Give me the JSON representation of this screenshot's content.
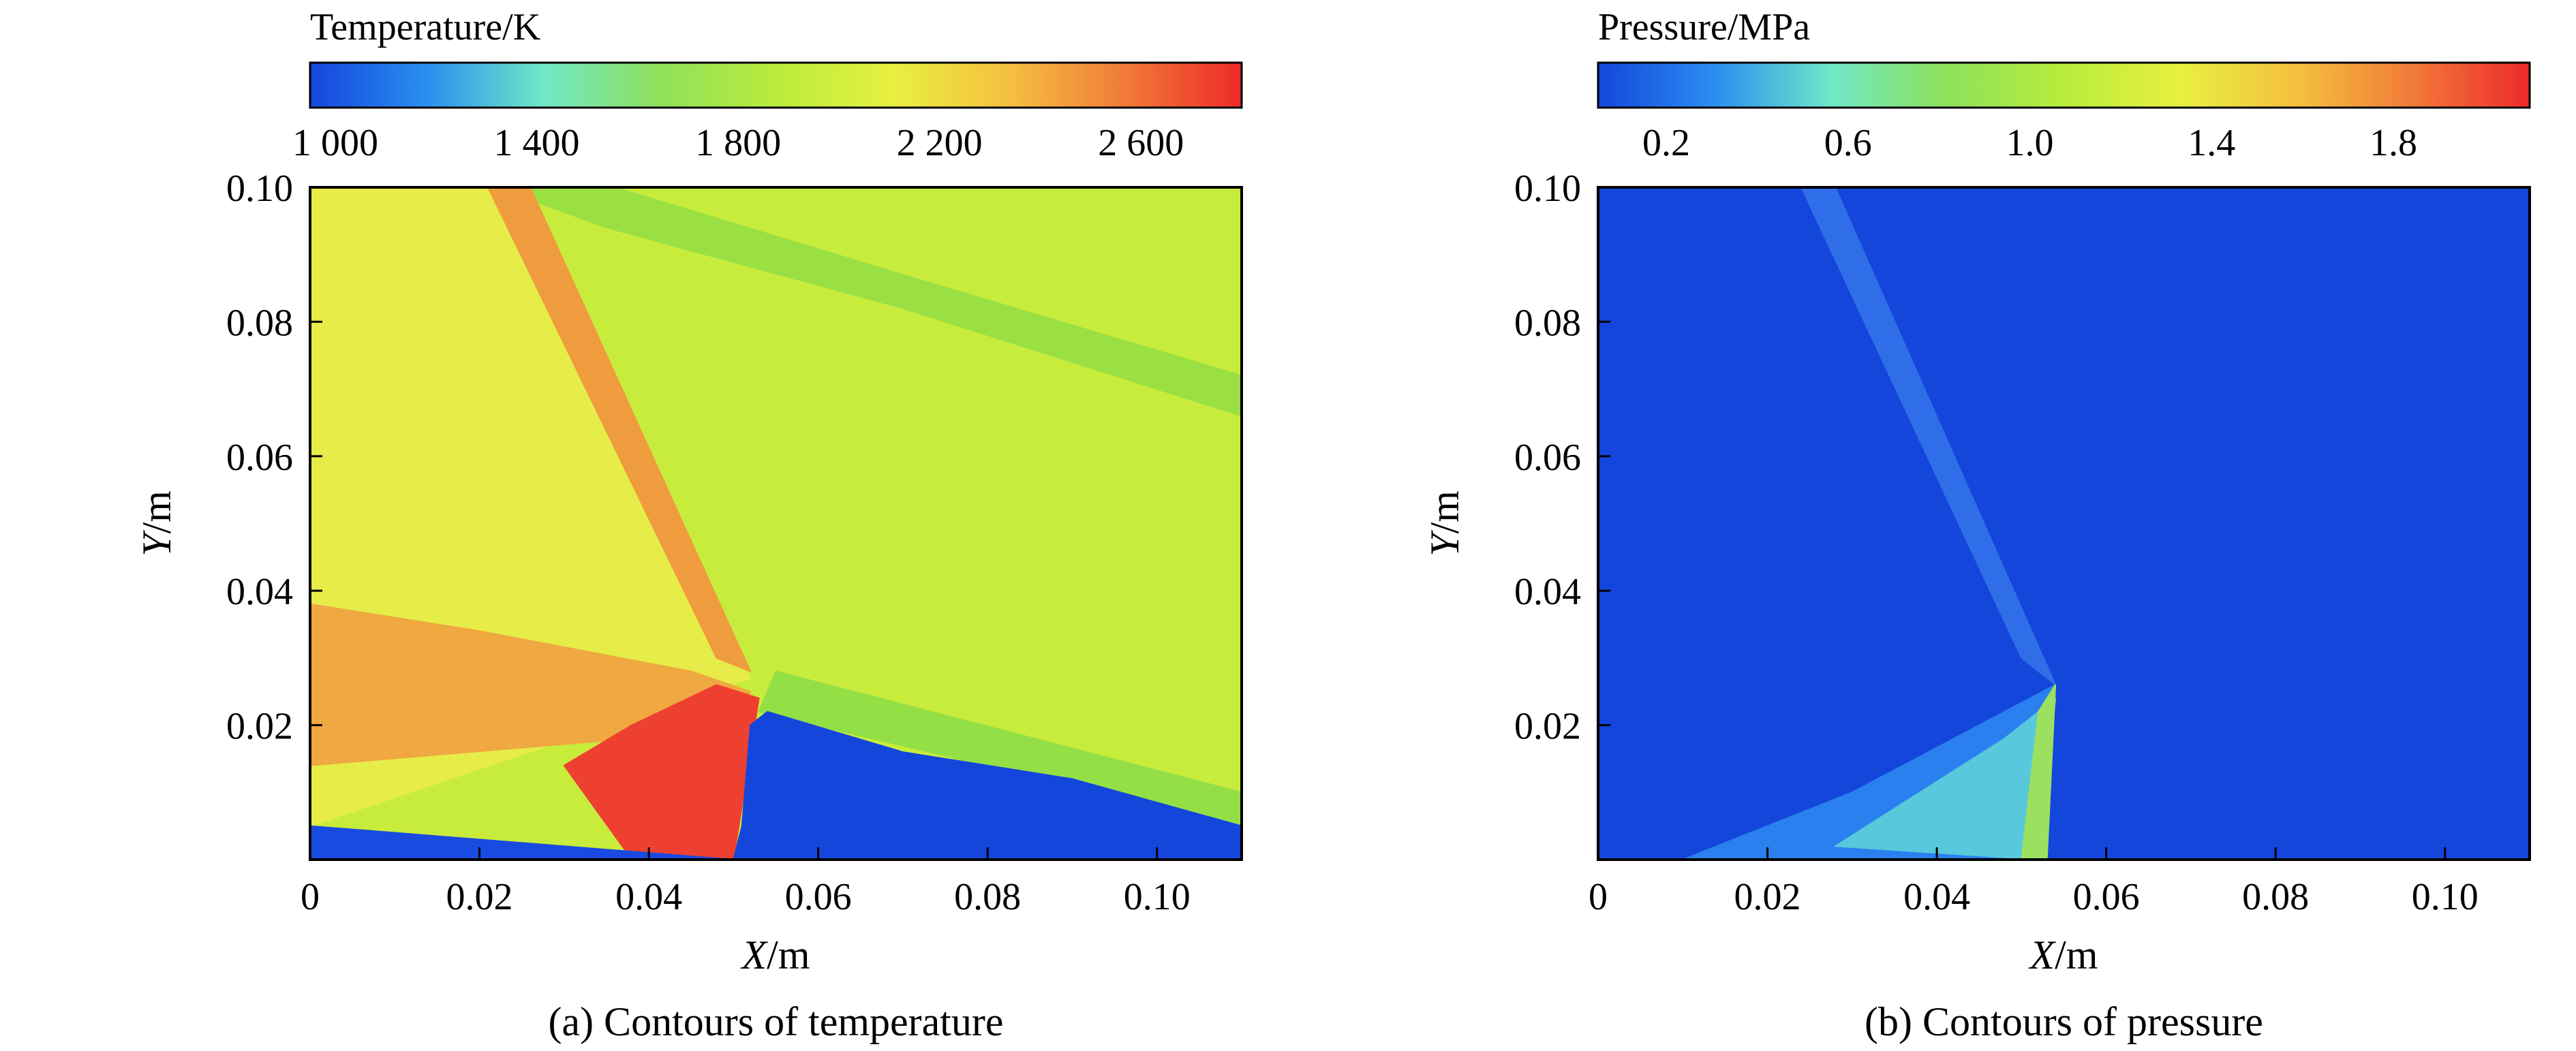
{
  "chart_data": [
    {
      "type": "heatmap",
      "panel": "a",
      "caption": "(a) Contours of temperature",
      "colorbar": {
        "title": "Temperature/K",
        "tick_labels": [
          "1 000",
          "1 400",
          "1 800",
          "2 200",
          "2 600"
        ],
        "tick_values": [
          1000,
          1400,
          1800,
          2200,
          2600
        ],
        "range": [
          950,
          2800
        ],
        "colors": [
          "#1446dc",
          "#2a8ef0",
          "#6fe8c8",
          "#8fe05a",
          "#b8ec3c",
          "#e8f040",
          "#f5c040",
          "#f07a38",
          "#ee2a2a"
        ]
      },
      "xlabel_var": "X",
      "xlabel_unit": "/m",
      "ylabel_var": "Y",
      "ylabel_unit": "/m",
      "x_ticks": [
        "0",
        "0.02",
        "0.04",
        "0.06",
        "0.08",
        "0.10"
      ],
      "x_tick_values": [
        0,
        0.02,
        0.04,
        0.06,
        0.08,
        0.1
      ],
      "y_ticks": [
        "0.02",
        "0.04",
        "0.06",
        "0.08",
        "0.10"
      ],
      "y_tick_values": [
        0.02,
        0.04,
        0.06,
        0.08,
        0.1
      ],
      "xlim": [
        0,
        0.11
      ],
      "ylim": [
        0,
        0.1
      ],
      "regions": [
        {
          "name": "background-post-shock",
          "color": "#c8ec3c",
          "polygon": [
            [
              0,
              0
            ],
            [
              0.11,
              0
            ],
            [
              0.11,
              0.1
            ],
            [
              0,
              0.1
            ]
          ]
        },
        {
          "name": "upper-band",
          "color": "#9ae043",
          "polygon": [
            [
              0.022,
              0.1
            ],
            [
              0.036,
              0.1
            ],
            [
              0.07,
              0.087
            ],
            [
              0.11,
              0.072
            ],
            [
              0.11,
              0.066
            ],
            [
              0.07,
              0.082
            ],
            [
              0.035,
              0.094
            ]
          ]
        },
        {
          "name": "preshock-region",
          "color": "#e6ec48",
          "polygon": [
            [
              0,
              0.005
            ],
            [
              0.052,
              0.027
            ],
            [
              0.044,
              0.04
            ],
            [
              0.022,
              0.1
            ],
            [
              0,
              0.1
            ]
          ]
        },
        {
          "name": "oblique-shock-front",
          "color": "#ef9c3e",
          "polygon": [
            [
              0.021,
              0.1
            ],
            [
              0.026,
              0.1
            ],
            [
              0.052,
              0.028
            ],
            [
              0.048,
              0.03
            ]
          ]
        },
        {
          "name": "lower-hot-layer",
          "color": "#f0a840",
          "polygon": [
            [
              0,
              0.014
            ],
            [
              0.038,
              0.018
            ],
            [
              0.05,
              0.02
            ],
            [
              0.052,
              0.025
            ],
            [
              0.045,
              0.028
            ],
            [
              0.02,
              0.034
            ],
            [
              0,
              0.038
            ]
          ]
        },
        {
          "name": "detonation-hot-core",
          "color": "#ee4030",
          "polygon": [
            [
              0.038,
              0
            ],
            [
              0.05,
              0
            ],
            [
              0.053,
              0.024
            ],
            [
              0.048,
              0.026
            ],
            [
              0.038,
              0.02
            ],
            [
              0.03,
              0.014
            ]
          ]
        },
        {
          "name": "cold-bottom-strip",
          "color": "#1a4be0",
          "polygon": [
            [
              0,
              0
            ],
            [
              0.05,
              0
            ],
            [
              0,
              0.005
            ]
          ]
        },
        {
          "name": "shear-band-lower",
          "color": "#94df46",
          "polygon": [
            [
              0.053,
              0.022
            ],
            [
              0.11,
              0.005
            ],
            [
              0.11,
              0.01
            ],
            [
              0.055,
              0.028
            ]
          ]
        },
        {
          "name": "cold-fresh-gas",
          "color": "#1446dc",
          "polygon": [
            [
              0.05,
              0
            ],
            [
              0.11,
              0
            ],
            [
              0.11,
              0.005
            ],
            [
              0.09,
              0.012
            ],
            [
              0.07,
              0.016
            ],
            [
              0.054,
              0.022
            ],
            [
              0.052,
              0.02
            ],
            [
              0.051,
              0.005
            ]
          ]
        }
      ]
    },
    {
      "type": "heatmap",
      "panel": "b",
      "caption": "(b) Contours of pressure",
      "colorbar": {
        "title": "Pressure/MPa",
        "tick_labels": [
          "0.2",
          "0.6",
          "1.0",
          "1.4",
          "1.8"
        ],
        "tick_values": [
          0.2,
          0.6,
          1.0,
          1.4,
          1.8
        ],
        "range": [
          0.05,
          2.1
        ],
        "colors": [
          "#1446dc",
          "#2a8ef0",
          "#6fe8c8",
          "#8fe05a",
          "#b8ec3c",
          "#e8f040",
          "#f5c040",
          "#f07a38",
          "#ee2a2a"
        ]
      },
      "xlabel_var": "X",
      "xlabel_unit": "/m",
      "ylabel_var": "Y",
      "ylabel_unit": "/m",
      "x_ticks": [
        "0",
        "0.02",
        "0.04",
        "0.06",
        "0.08",
        "0.10"
      ],
      "x_tick_values": [
        0,
        0.02,
        0.04,
        0.06,
        0.08,
        0.1
      ],
      "y_ticks": [
        "0.02",
        "0.04",
        "0.06",
        "0.08",
        "0.10"
      ],
      "y_tick_values": [
        0.02,
        0.04,
        0.06,
        0.08,
        0.1
      ],
      "xlim": [
        0,
        0.11
      ],
      "ylim": [
        0,
        0.1
      ],
      "regions": [
        {
          "name": "background-low-pressure",
          "color": "#1446dc",
          "polygon": [
            [
              0,
              0
            ],
            [
              0.11,
              0
            ],
            [
              0.11,
              0.1
            ],
            [
              0,
              0.1
            ]
          ]
        },
        {
          "name": "oblique-shock-band",
          "color": "#2f6ee8",
          "polygon": [
            [
              0.024,
              0.1
            ],
            [
              0.028,
              0.1
            ],
            [
              0.054,
              0.026
            ],
            [
              0.05,
              0.03
            ]
          ]
        },
        {
          "name": "compressed-zone",
          "color": "#2a80ee",
          "polygon": [
            [
              0.01,
              0
            ],
            [
              0.053,
              0
            ],
            [
              0.054,
              0.026
            ],
            [
              0.045,
              0.02
            ],
            [
              0.03,
              0.01
            ]
          ]
        },
        {
          "name": "high-pressure-zone",
          "color": "#58c8dc",
          "polygon": [
            [
              0.028,
              0.002
            ],
            [
              0.052,
              0
            ],
            [
              0.054,
              0.024
            ],
            [
              0.048,
              0.018
            ],
            [
              0.038,
              0.01
            ]
          ]
        },
        {
          "name": "detonation-front",
          "color": "#9ce060",
          "polygon": [
            [
              0.05,
              0
            ],
            [
              0.053,
              0
            ],
            [
              0.054,
              0.026
            ],
            [
              0.052,
              0.022
            ]
          ]
        }
      ]
    }
  ]
}
